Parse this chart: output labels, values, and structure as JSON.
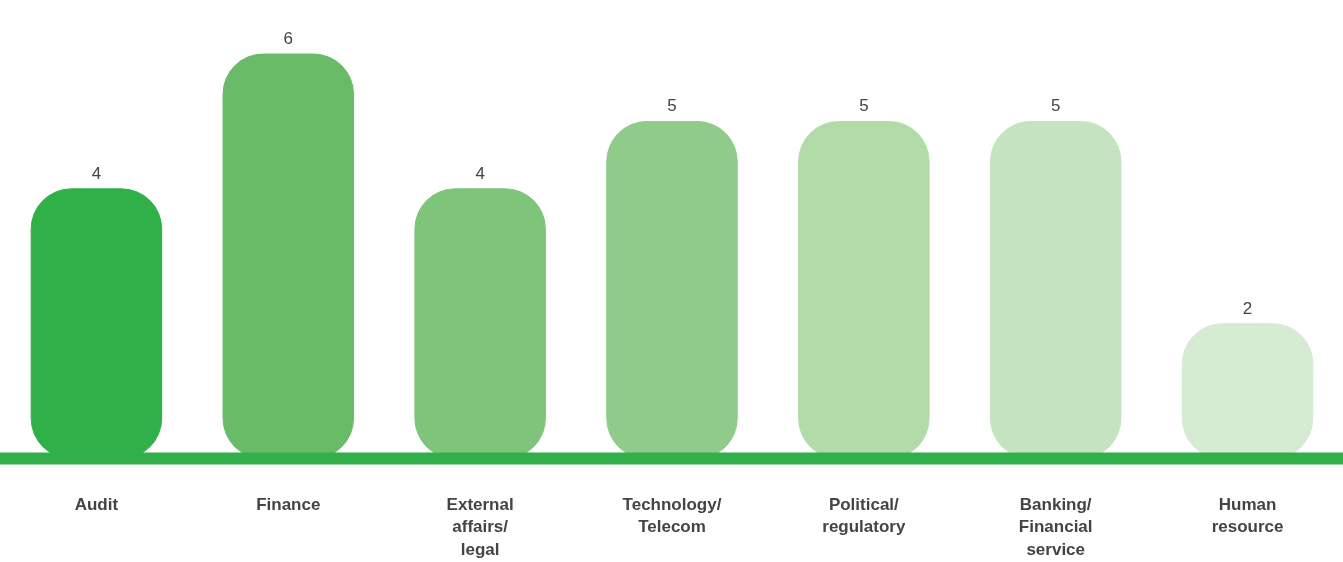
{
  "chart_data": {
    "type": "bar",
    "categories": [
      "Audit",
      "Finance",
      "External\naffairs/\nlegal",
      "Technology/\nTelecom",
      "Political/\nregulatory",
      "Banking/\nFinancial\nservice",
      "Human\nresource"
    ],
    "values": [
      4,
      6,
      4,
      5,
      5,
      5,
      2
    ],
    "colors": [
      "#2fb048",
      "#69bb67",
      "#7ec47a",
      "#90cb89",
      "#b2dbaa",
      "#c5e3c0",
      "#d5ebd2"
    ],
    "data_labels": true,
    "grid": false
  }
}
